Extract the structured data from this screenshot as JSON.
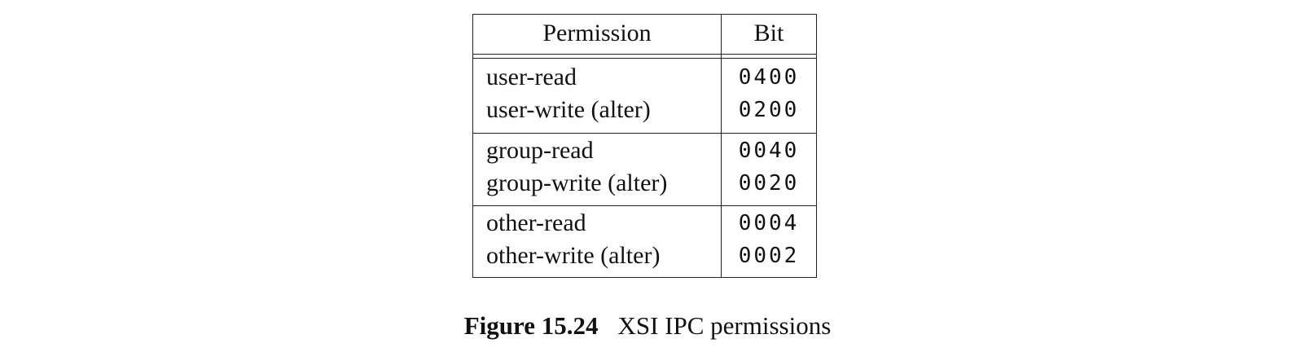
{
  "table": {
    "headers": {
      "permission": "Permission",
      "bit": "Bit"
    },
    "groups": [
      {
        "rows": [
          {
            "permission": "user-read",
            "bit": "0400"
          },
          {
            "permission": "user-write (alter)",
            "bit": "0200"
          }
        ]
      },
      {
        "rows": [
          {
            "permission": "group-read",
            "bit": "0040"
          },
          {
            "permission": "group-write (alter)",
            "bit": "0020"
          }
        ]
      },
      {
        "rows": [
          {
            "permission": "other-read",
            "bit": "0004"
          },
          {
            "permission": "other-write (alter)",
            "bit": "0002"
          }
        ]
      }
    ]
  },
  "caption": {
    "label": "Figure 15.24",
    "text": "XSI IPC permissions"
  }
}
